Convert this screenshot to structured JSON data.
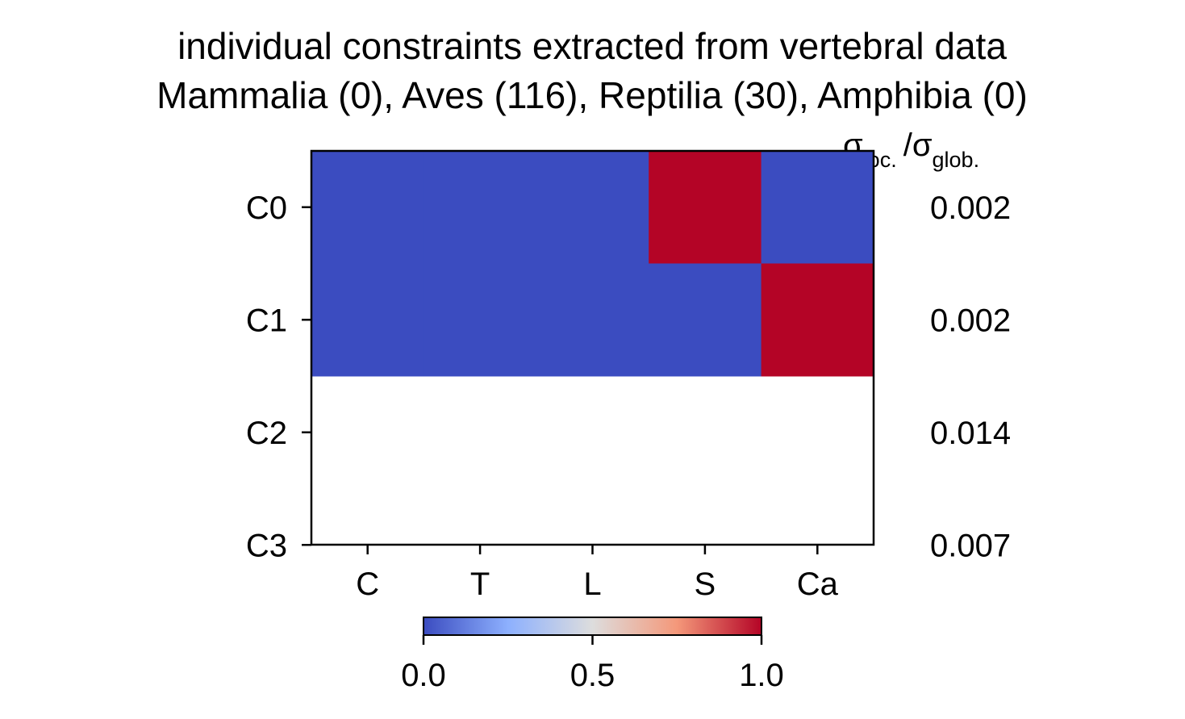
{
  "chart_data": {
    "type": "heatmap",
    "title_line1": "individual constraints extracted from vertebral data",
    "title_line2": "Mammalia (0), Aves (116), Reptilia (30), Amphibia (0)",
    "x_categories": [
      "C",
      "T",
      "L",
      "S",
      "Ca"
    ],
    "y_categories": [
      "C0",
      "C1",
      "C2",
      "C3"
    ],
    "values": [
      [
        0,
        0,
        0,
        1,
        0
      ],
      [
        0,
        0,
        0,
        0,
        1
      ],
      [
        null,
        null,
        null,
        null,
        null
      ],
      [
        null,
        null,
        null,
        null,
        null
      ]
    ],
    "right_label": {
      "sigma": "σ",
      "loc_sub": "loc.",
      "slash": "/",
      "glob_sub": "glob."
    },
    "right_values": [
      "0.002",
      "0.002",
      "0.014",
      "0.007"
    ],
    "colorbar": {
      "colormap": "coolwarm",
      "low_color": "#3b4cc0",
      "mid_color": "#dddddd",
      "high_color": "#b40426",
      "ticks": [
        "0.0",
        "0.5",
        "1.0"
      ],
      "range": [
        0,
        1
      ]
    }
  }
}
